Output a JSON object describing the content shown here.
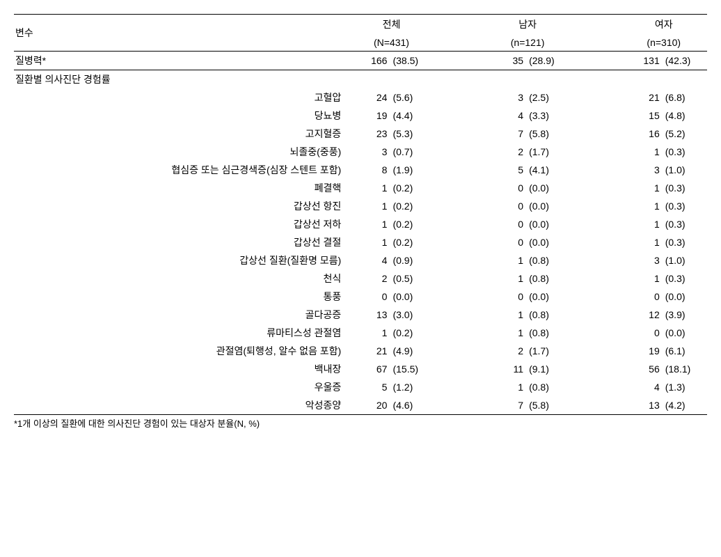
{
  "header": {
    "var_label": "변수",
    "groups": [
      {
        "name": "전체",
        "n_label": "(N=431)"
      },
      {
        "name": "남자",
        "n_label": "(n=121)"
      },
      {
        "name": "여자",
        "n_label": "(n=310)"
      }
    ]
  },
  "history_row": {
    "label": "질병력*",
    "cells": [
      {
        "n": "166",
        "pct": "(38.5)"
      },
      {
        "n": "35",
        "pct": "(28.9)"
      },
      {
        "n": "131",
        "pct": "(42.3)"
      }
    ]
  },
  "section_label": "질환별 의사진단 경험률",
  "rows": [
    {
      "label": "고혈압",
      "cells": [
        {
          "n": "24",
          "pct": "(5.6)"
        },
        {
          "n": "3",
          "pct": "(2.5)"
        },
        {
          "n": "21",
          "pct": "(6.8)"
        }
      ]
    },
    {
      "label": "당뇨병",
      "cells": [
        {
          "n": "19",
          "pct": "(4.4)"
        },
        {
          "n": "4",
          "pct": "(3.3)"
        },
        {
          "n": "15",
          "pct": "(4.8)"
        }
      ]
    },
    {
      "label": "고지혈증",
      "cells": [
        {
          "n": "23",
          "pct": "(5.3)"
        },
        {
          "n": "7",
          "pct": "(5.8)"
        },
        {
          "n": "16",
          "pct": "(5.2)"
        }
      ]
    },
    {
      "label": "뇌졸중(중풍)",
      "cells": [
        {
          "n": "3",
          "pct": "(0.7)"
        },
        {
          "n": "2",
          "pct": "(1.7)"
        },
        {
          "n": "1",
          "pct": "(0.3)"
        }
      ]
    },
    {
      "label": "협심증 또는 심근경색증(심장 스텐트 포함)",
      "cells": [
        {
          "n": "8",
          "pct": "(1.9)"
        },
        {
          "n": "5",
          "pct": "(4.1)"
        },
        {
          "n": "3",
          "pct": "(1.0)"
        }
      ]
    },
    {
      "label": "폐결핵",
      "cells": [
        {
          "n": "1",
          "pct": "(0.2)"
        },
        {
          "n": "0",
          "pct": "(0.0)"
        },
        {
          "n": "1",
          "pct": "(0.3)"
        }
      ]
    },
    {
      "label": "갑상선 항진",
      "cells": [
        {
          "n": "1",
          "pct": "(0.2)"
        },
        {
          "n": "0",
          "pct": "(0.0)"
        },
        {
          "n": "1",
          "pct": "(0.3)"
        }
      ]
    },
    {
      "label": "갑상선 저하",
      "cells": [
        {
          "n": "1",
          "pct": "(0.2)"
        },
        {
          "n": "0",
          "pct": "(0.0)"
        },
        {
          "n": "1",
          "pct": "(0.3)"
        }
      ]
    },
    {
      "label": "갑상선 결절",
      "cells": [
        {
          "n": "1",
          "pct": "(0.2)"
        },
        {
          "n": "0",
          "pct": "(0.0)"
        },
        {
          "n": "1",
          "pct": "(0.3)"
        }
      ]
    },
    {
      "label": "갑상선 질환(질환명 모름)",
      "cells": [
        {
          "n": "4",
          "pct": "(0.9)"
        },
        {
          "n": "1",
          "pct": "(0.8)"
        },
        {
          "n": "3",
          "pct": "(1.0)"
        }
      ]
    },
    {
      "label": "천식",
      "cells": [
        {
          "n": "2",
          "pct": "(0.5)"
        },
        {
          "n": "1",
          "pct": "(0.8)"
        },
        {
          "n": "1",
          "pct": "(0.3)"
        }
      ]
    },
    {
      "label": "통풍",
      "cells": [
        {
          "n": "0",
          "pct": "(0.0)"
        },
        {
          "n": "0",
          "pct": "(0.0)"
        },
        {
          "n": "0",
          "pct": "(0.0)"
        }
      ]
    },
    {
      "label": "골다공증",
      "cells": [
        {
          "n": "13",
          "pct": "(3.0)"
        },
        {
          "n": "1",
          "pct": "(0.8)"
        },
        {
          "n": "12",
          "pct": "(3.9)"
        }
      ]
    },
    {
      "label": "류마티스성 관절염",
      "cells": [
        {
          "n": "1",
          "pct": "(0.2)"
        },
        {
          "n": "1",
          "pct": "(0.8)"
        },
        {
          "n": "0",
          "pct": "(0.0)"
        }
      ]
    },
    {
      "label": "관절염(퇴행성, 알수 없음 포함)",
      "cells": [
        {
          "n": "21",
          "pct": "(4.9)"
        },
        {
          "n": "2",
          "pct": "(1.7)"
        },
        {
          "n": "19",
          "pct": "(6.1)"
        }
      ]
    },
    {
      "label": "백내장",
      "cells": [
        {
          "n": "67",
          "pct": "(15.5)"
        },
        {
          "n": "11",
          "pct": "(9.1)"
        },
        {
          "n": "56",
          "pct": "(18.1)"
        }
      ]
    },
    {
      "label": "우울증",
      "cells": [
        {
          "n": "5",
          "pct": "(1.2)"
        },
        {
          "n": "1",
          "pct": "(0.8)"
        },
        {
          "n": "4",
          "pct": "(1.3)"
        }
      ]
    },
    {
      "label": "악성종양",
      "cells": [
        {
          "n": "20",
          "pct": "(4.6)"
        },
        {
          "n": "7",
          "pct": "(5.8)"
        },
        {
          "n": "13",
          "pct": "(4.2)"
        }
      ]
    }
  ],
  "footnote": "*1개 이상의 질환에 대한 의사진단 경험이 있는 대상자 분율(N, %)"
}
